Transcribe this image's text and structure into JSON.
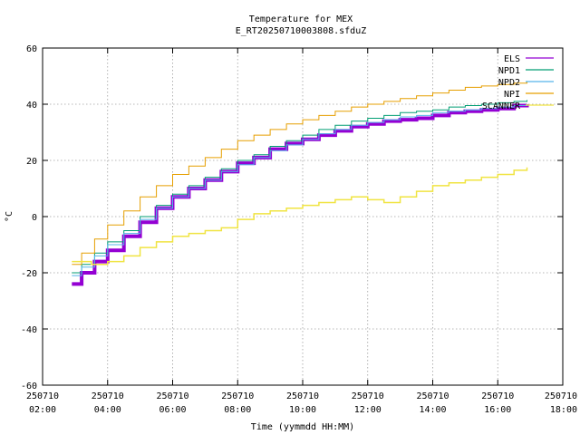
{
  "chart_data": {
    "type": "line",
    "title": "Temperature for MEX",
    "subtitle": "E_RT20250710003808.sfduZ",
    "xlabel": "Time (yymmdd HH:MM)",
    "ylabel": "°C",
    "ylim": [
      -60,
      60
    ],
    "y_ticks": [
      "-60",
      "-40",
      "-20",
      "0",
      "20",
      "40",
      "60"
    ],
    "xlim_hours": [
      2,
      18
    ],
    "x_ticks": [
      {
        "date": "250710",
        "time": "02:00"
      },
      {
        "date": "250710",
        "time": "04:00"
      },
      {
        "date": "250710",
        "time": "06:00"
      },
      {
        "date": "250710",
        "time": "08:00"
      },
      {
        "date": "250710",
        "time": "10:00"
      },
      {
        "date": "250710",
        "time": "12:00"
      },
      {
        "date": "250710",
        "time": "14:00"
      },
      {
        "date": "250710",
        "time": "16:00"
      },
      {
        "date": "250710",
        "time": "18:00"
      }
    ],
    "grid": true,
    "legend_position": "top-right",
    "series": [
      {
        "name": "ELS",
        "color": "#9400d3",
        "width": 4,
        "x": [
          2.9,
          3.2,
          3.6,
          4.0,
          4.5,
          5.0,
          5.5,
          6.0,
          6.5,
          7.0,
          7.5,
          8.0,
          8.5,
          9.0,
          9.5,
          10.0,
          10.5,
          11.0,
          11.5,
          12.0,
          12.5,
          13.0,
          13.5,
          14.0,
          14.5,
          15.0,
          15.5,
          16.0,
          16.5,
          16.9
        ],
        "y": [
          -24,
          -20,
          -16,
          -12,
          -7,
          -2,
          3,
          7,
          10,
          13,
          16,
          19,
          21,
          24,
          26,
          27.5,
          29,
          30.5,
          32,
          33,
          34,
          34.5,
          35,
          36,
          37,
          37.5,
          38,
          38.5,
          39.5,
          40
        ]
      },
      {
        "name": "NPD1",
        "color": "#009e73",
        "width": 1,
        "x": [
          2.9,
          3.2,
          3.6,
          4.0,
          4.5,
          5.0,
          5.5,
          6.0,
          6.5,
          7.0,
          7.5,
          8.0,
          8.5,
          9.0,
          9.5,
          10.0,
          10.5,
          11.0,
          11.5,
          12.0,
          12.5,
          13.0,
          13.5,
          14.0,
          14.5,
          15.0,
          15.5,
          16.0,
          16.5,
          16.9
        ],
        "y": [
          -20,
          -17,
          -13,
          -9,
          -5,
          0,
          4,
          8,
          11,
          14,
          17,
          20,
          22,
          25,
          27,
          29,
          31,
          32.5,
          34,
          35,
          36,
          37,
          37.5,
          38,
          39,
          39.5,
          40,
          40.5,
          41,
          41.5
        ]
      },
      {
        "name": "NPD2",
        "color": "#56b4e9",
        "width": 1,
        "x": [
          2.9,
          3.2,
          3.6,
          4.0,
          4.5,
          5.0,
          5.5,
          6.0,
          6.5,
          7.0,
          7.5,
          8.0,
          8.5,
          9.0,
          9.5,
          10.0,
          10.5,
          11.0,
          11.5,
          12.0,
          12.5,
          13.0,
          13.5,
          14.0,
          14.5,
          15.0,
          15.5,
          16.0,
          16.5,
          16.9
        ],
        "y": [
          -21,
          -18,
          -14,
          -10,
          -6,
          -1,
          3,
          7,
          10,
          13,
          16,
          18.5,
          21,
          23.5,
          25.5,
          27.5,
          29.5,
          31,
          32.5,
          33.5,
          34.5,
          35.5,
          36,
          37,
          37.5,
          38,
          38.5,
          39,
          39.5,
          40
        ]
      },
      {
        "name": "NPI",
        "color": "#e69f00",
        "width": 1,
        "x": [
          2.9,
          3.2,
          3.6,
          4.0,
          4.5,
          5.0,
          5.5,
          6.0,
          6.5,
          7.0,
          7.5,
          8.0,
          8.5,
          9.0,
          9.5,
          10.0,
          10.5,
          11.0,
          11.5,
          12.0,
          12.5,
          13.0,
          13.5,
          14.0,
          14.5,
          15.0,
          15.5,
          16.0,
          16.5,
          16.9
        ],
        "y": [
          -17,
          -13,
          -8,
          -3,
          2,
          7,
          11,
          15,
          18,
          21,
          24,
          27,
          29,
          31,
          33,
          34.5,
          36,
          37.5,
          39,
          40,
          41,
          42,
          43,
          44,
          45,
          46,
          46.5,
          47,
          47.5,
          48
        ]
      },
      {
        "name": "SCANNER",
        "color": "#f0e442",
        "width": 1.5,
        "x": [
          2.9,
          3.5,
          4.0,
          4.5,
          5.0,
          5.5,
          6.0,
          6.5,
          7.0,
          7.5,
          8.0,
          8.5,
          9.0,
          9.5,
          10.0,
          10.5,
          11.0,
          11.5,
          12.0,
          12.5,
          13.0,
          13.5,
          14.0,
          14.5,
          15.0,
          15.5,
          16.0,
          16.5,
          16.9
        ],
        "y": [
          -16,
          -17,
          -16,
          -14,
          -11,
          -9,
          -7,
          -6,
          -5,
          -4,
          -1,
          1,
          2,
          3,
          4,
          5,
          6,
          7,
          6,
          5,
          7,
          9,
          11,
          12,
          13,
          14,
          15,
          16.5,
          17.5
        ]
      }
    ]
  }
}
